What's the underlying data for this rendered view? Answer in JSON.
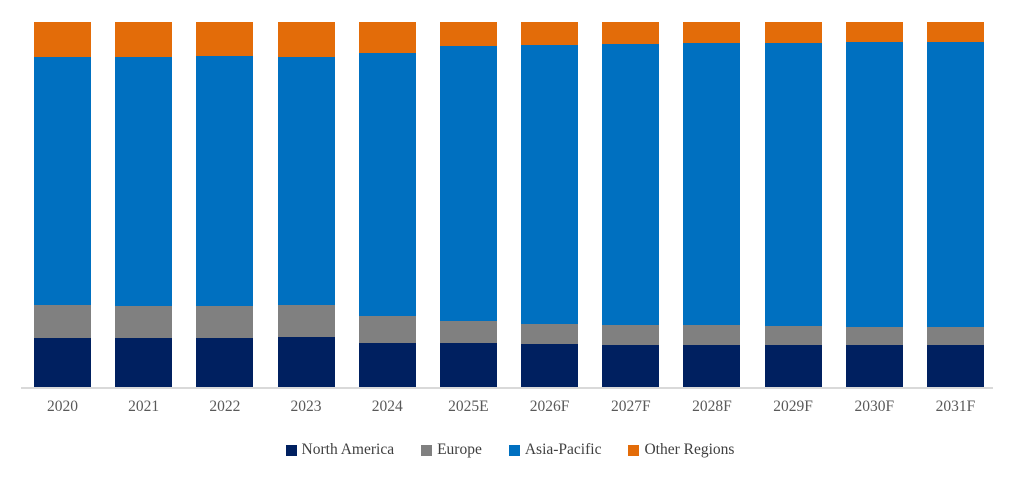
{
  "chart_data": {
    "type": "bar",
    "variant": "stacked-100-percent",
    "title": "",
    "xlabel": "",
    "ylabel": "",
    "ylim": [
      0,
      100
    ],
    "grid": false,
    "legend_position": "bottom-center",
    "categories": [
      "2020",
      "2021",
      "2022",
      "2023",
      "2024",
      "2025E",
      "2026F",
      "2027F",
      "2028F",
      "2029F",
      "2030F",
      "2031F"
    ],
    "series": [
      {
        "name": "North America",
        "color": "#002060",
        "values": [
          13.3,
          13.3,
          13.3,
          13.6,
          12.1,
          12.1,
          11.8,
          11.6,
          11.6,
          11.5,
          11.5,
          11.4
        ]
      },
      {
        "name": "Europe",
        "color": "#808080",
        "values": [
          9.2,
          8.9,
          8.9,
          8.9,
          7.4,
          6.0,
          5.5,
          5.3,
          5.3,
          5.2,
          4.9,
          5.1
        ]
      },
      {
        "name": "Asia-Pacific",
        "color": "#0070C0",
        "values": [
          67.9,
          68.2,
          68.5,
          67.9,
          72.0,
          75.3,
          76.4,
          77.1,
          77.3,
          77.5,
          78.1,
          78.0
        ]
      },
      {
        "name": "Other Regions",
        "color": "#E36C09",
        "values": [
          9.6,
          9.6,
          9.3,
          9.6,
          8.5,
          6.6,
          6.3,
          6.0,
          5.8,
          5.8,
          5.5,
          5.5
        ]
      }
    ],
    "colors": {
      "axis_line": "#d9d9d9",
      "tick_label": "#595959",
      "legend_text": "#404040",
      "background": "#ffffff"
    }
  }
}
